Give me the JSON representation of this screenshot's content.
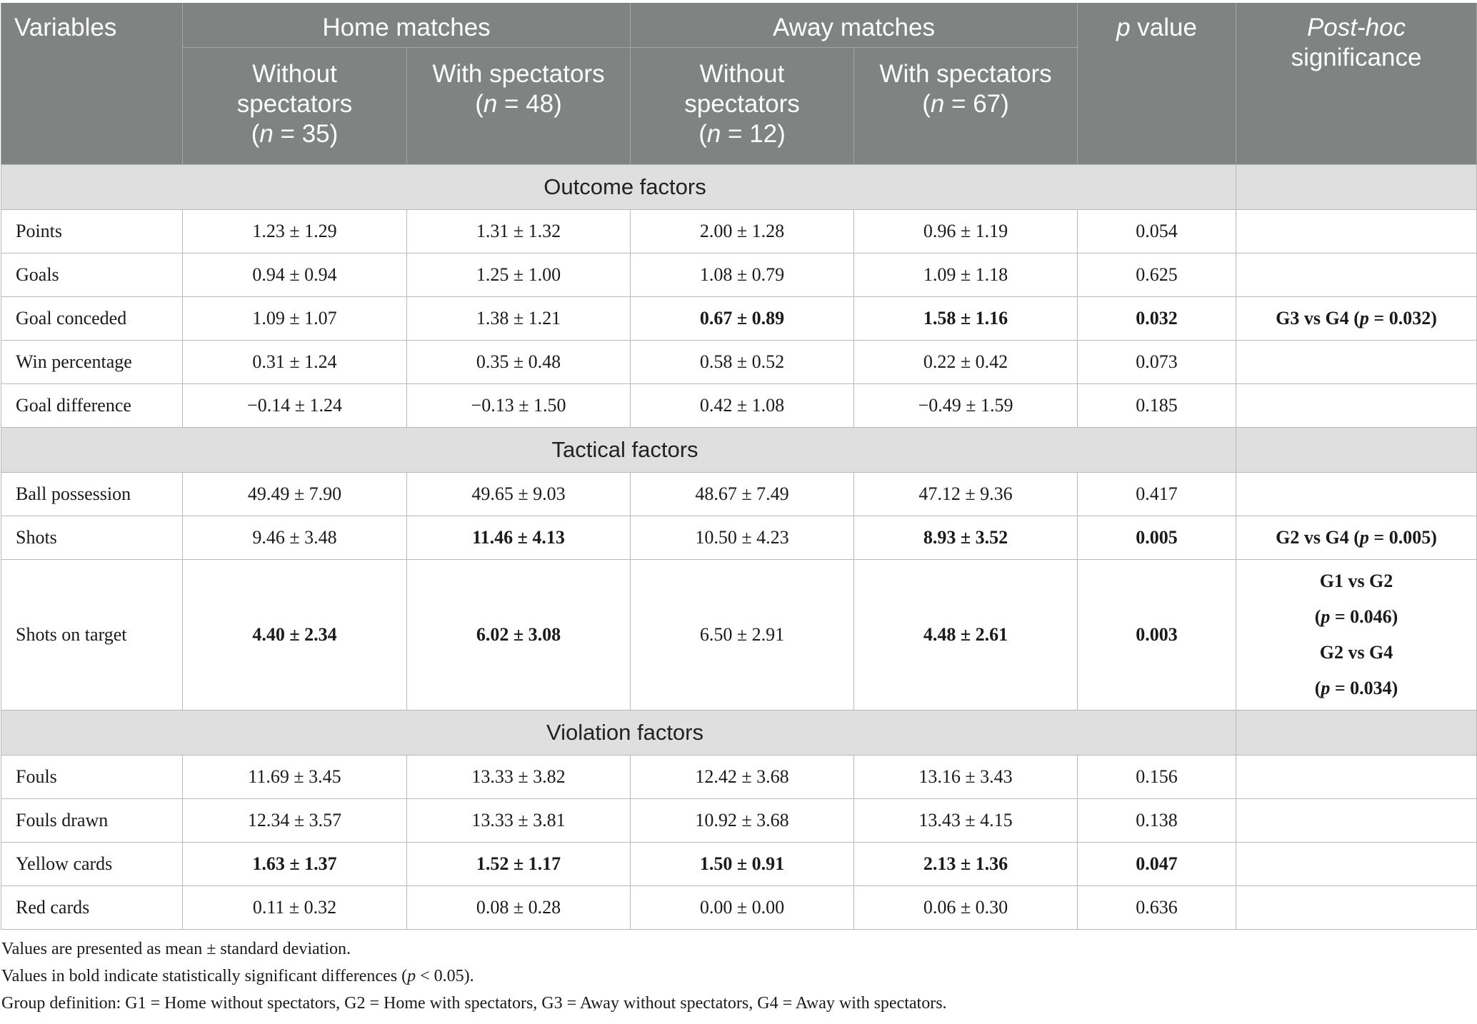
{
  "header": {
    "variables": "Variables",
    "home_group": "Home matches",
    "away_group": "Away matches",
    "p_value_italic": "p",
    "p_value_rest": " value",
    "posthoc_italic": "Post-hoc",
    "posthoc_rest": "significance",
    "sub": [
      {
        "line1": "Without",
        "line2": "spectators",
        "n_pre": "(",
        "n_var": "n",
        "n_post": " = 35)"
      },
      {
        "line1": "With spectators",
        "line2": "",
        "n_pre": "(",
        "n_var": "n",
        "n_post": " = 48)"
      },
      {
        "line1": "Without",
        "line2": "spectators",
        "n_pre": "(",
        "n_var": "n",
        "n_post": " = 12)"
      },
      {
        "line1": "With spectators",
        "line2": "",
        "n_pre": "(",
        "n_var": "n",
        "n_post": " = 67)"
      }
    ]
  },
  "sections": [
    {
      "title": "Outcome factors",
      "rows": [
        {
          "label": "Points",
          "v": [
            "1.23 ± 1.29",
            "1.31 ± 1.32",
            "2.00 ± 1.28",
            "0.96 ± 1.19"
          ],
          "p": "0.054",
          "posthoc": ""
        },
        {
          "label": "Goals",
          "v": [
            "0.94 ± 0.94",
            "1.25 ± 1.00",
            "1.08 ± 0.79",
            "1.09 ± 1.18"
          ],
          "p": "0.625",
          "posthoc": ""
        },
        {
          "label": "Goal conceded",
          "v": [
            "1.09 ± 1.07",
            "1.38 ± 1.21",
            "0.67 ± 0.89",
            "1.58 ± 1.16"
          ],
          "p": "0.032",
          "posthoc": "G3 vs G4 (p = 0.032)"
        },
        {
          "label": "Win percentage",
          "v": [
            "0.31 ± 1.24",
            "0.35 ± 0.48",
            "0.58 ± 0.52",
            "0.22 ± 0.42"
          ],
          "p": "0.073",
          "posthoc": ""
        },
        {
          "label": "Goal difference",
          "v": [
            "−0.14 ± 1.24",
            "−0.13 ± 1.50",
            "0.42 ± 1.08",
            "−0.49 ± 1.59"
          ],
          "p": "0.185",
          "posthoc": ""
        }
      ]
    },
    {
      "title": "Tactical factors",
      "rows": [
        {
          "label": "Ball possession",
          "v": [
            "49.49 ± 7.90",
            "49.65 ± 9.03",
            "48.67 ± 7.49",
            "47.12 ± 9.36"
          ],
          "p": "0.417",
          "posthoc": ""
        },
        {
          "label": "Shots",
          "v": [
            "9.46 ± 3.48",
            "11.46 ± 4.13",
            "10.50 ± 4.23",
            "8.93 ± 3.52"
          ],
          "p": "0.005",
          "posthoc": "G2 vs G4 (p = 0.005)"
        },
        {
          "label": "Shots on target",
          "v": [
            "4.40 ± 2.34",
            "6.02 ± 3.08",
            "6.50 ± 2.91",
            "4.48 ± 2.61"
          ],
          "p": "0.003",
          "posthoc_lines": [
            "G1 vs G2",
            "(p = 0.046)",
            "G2 vs G4",
            "(p = 0.034)"
          ]
        }
      ]
    },
    {
      "title": "Violation factors",
      "rows": [
        {
          "label": "Fouls",
          "v": [
            "11.69 ± 3.45",
            "13.33 ± 3.82",
            "12.42 ± 3.68",
            "13.16 ± 3.43"
          ],
          "p": "0.156",
          "posthoc": ""
        },
        {
          "label": "Fouls drawn",
          "v": [
            "12.34 ± 3.57",
            "13.33 ± 3.81",
            "10.92 ± 3.68",
            "13.43 ± 4.15"
          ],
          "p": "0.138",
          "posthoc": ""
        },
        {
          "label": "Yellow cards",
          "v": [
            "1.63 ± 1.37",
            "1.52 ± 1.17",
            "1.50 ± 0.91",
            "2.13 ± 1.36"
          ],
          "p": "0.047",
          "posthoc": ""
        },
        {
          "label": "Red cards",
          "v": [
            "0.11 ± 0.32",
            "0.08 ± 0.28",
            "0.00 ± 0.00",
            "0.06 ± 0.30"
          ],
          "p": "0.636",
          "posthoc": ""
        }
      ]
    }
  ],
  "notes": [
    "Values are presented as mean ± standard deviation.",
    "Values in bold indicate statistically significant differences (p < 0.05).",
    "Group definition: G1 = Home without spectators, G2 = Home with spectators, G3 = Away without spectators, G4 = Away with spectators."
  ]
}
